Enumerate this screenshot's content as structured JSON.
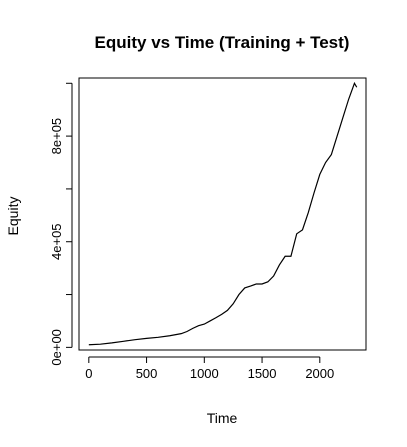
{
  "chart_data": {
    "type": "line",
    "title": "Equity vs Time (Training + Test)",
    "xlabel": "Time",
    "ylabel": "Equity",
    "xlim": [
      -85,
      2400
    ],
    "ylim": [
      -10000,
      1020000
    ],
    "x_ticks": [
      0,
      500,
      1000,
      1500,
      2000
    ],
    "x_tick_labels": [
      "0",
      "500",
      "1000",
      "1500",
      "2000"
    ],
    "y_ticks": [
      0,
      200000,
      400000,
      600000,
      800000,
      1000000
    ],
    "y_tick_labels": [
      "0e+00",
      "",
      "4e+05",
      "",
      "8e+05",
      ""
    ],
    "grid": false,
    "legend": "none",
    "line_color": "#000000",
    "series": [
      {
        "x": [
          0,
          100,
          200,
          300,
          400,
          500,
          600,
          700,
          800,
          850,
          900,
          950,
          1000,
          1050,
          1100,
          1150,
          1200,
          1250,
          1300,
          1350,
          1400,
          1450,
          1500,
          1550,
          1600,
          1650,
          1700,
          1750,
          1800,
          1850,
          1900,
          1950,
          2000,
          2050,
          2100,
          2150,
          2200,
          2250,
          2300,
          2320
        ],
        "y": [
          10000,
          12000,
          17000,
          23000,
          29000,
          34000,
          38000,
          44000,
          52000,
          60000,
          72000,
          82000,
          88000,
          100000,
          112000,
          125000,
          140000,
          165000,
          200000,
          225000,
          232000,
          240000,
          240000,
          248000,
          270000,
          312000,
          345000,
          345000,
          430000,
          445000,
          510000,
          585000,
          655000,
          700000,
          730000,
          800000,
          870000,
          940000,
          1000000,
          985000
        ]
      }
    ]
  }
}
